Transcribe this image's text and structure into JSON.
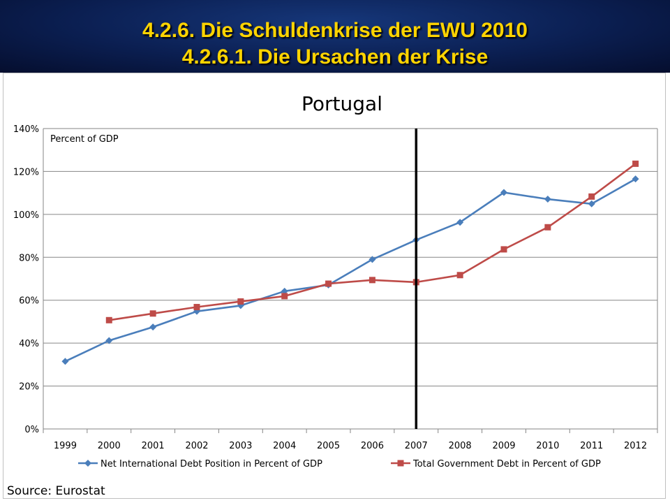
{
  "slide": {
    "heading_line1": "4.2.6. Die Schuldenkrise der EWU 2010",
    "heading_line2": "4.2.6.1. Die Ursachen der Krise",
    "source": "Source: Eurostat"
  },
  "chart_data": {
    "type": "line",
    "title": "Portugal",
    "annotation": "Percent of GDP",
    "xlabel": "",
    "ylabel": "",
    "categories": [
      "1999",
      "2000",
      "2001",
      "2002",
      "2003",
      "2004",
      "2005",
      "2006",
      "2007",
      "2008",
      "2009",
      "2010",
      "2011",
      "2012"
    ],
    "ylim": [
      0,
      140
    ],
    "yticks": [
      0,
      20,
      40,
      60,
      80,
      100,
      120,
      140
    ],
    "ytick_labels": [
      "0%",
      "20%",
      "40%",
      "60%",
      "80%",
      "100%",
      "120%",
      "140%"
    ],
    "grid": true,
    "legend_position": "bottom",
    "vertical_marker": "2007",
    "series": [
      {
        "name": "Net International Debt Position in Percent of GDP",
        "color": "#4a7ebb",
        "marker": "diamond",
        "values": [
          31.5,
          41.2,
          47.5,
          54.8,
          57.5,
          64.2,
          67.1,
          79.0,
          88.1,
          96.3,
          110.2,
          107.1,
          104.9,
          116.5
        ]
      },
      {
        "name": "Total Government Debt in Percent of GDP",
        "color": "#be4b48",
        "marker": "square",
        "values": [
          null,
          50.7,
          53.8,
          56.8,
          59.4,
          61.9,
          67.7,
          69.4,
          68.4,
          71.7,
          83.7,
          94.0,
          108.3,
          123.6
        ]
      }
    ]
  }
}
